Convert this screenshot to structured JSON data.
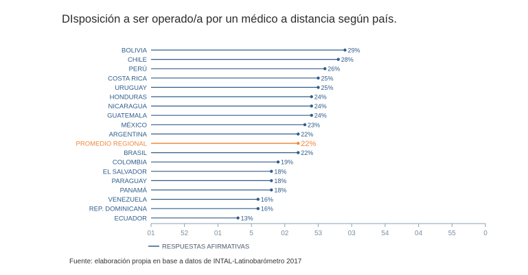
{
  "title": "DIsposición a ser operado/a por un médico a distancia según país.",
  "source": "Fuente: elaboración propia en base a datos de INTAL-Latinobarómetro 2017",
  "colors": {
    "series": "#2f5d8a",
    "highlight": "#f0883a",
    "axis": "#7a8fa3",
    "text": "#2f5d8a"
  },
  "chart_data": {
    "type": "bar",
    "title": "DIsposición a ser operado/a por un médico a distancia según país.",
    "xlim": [
      0,
      50
    ],
    "x_tick_labels": [
      "01",
      "52",
      "01",
      "5",
      "02",
      "53",
      "03",
      "54",
      "04",
      "55",
      "0"
    ],
    "legend": "bottom-left",
    "series": [
      {
        "name": "RESPUESTAS AFIRMATIVAS",
        "categories": [
          "BOLIVIA",
          "CHILE",
          "PERÚ",
          "COSTA RICA",
          "URUGUAY",
          "HONDURAS",
          "NICARAGUA",
          "GUATEMALA",
          "MÉXICO",
          "ARGENTINA",
          "PROMEDIO REGIONAL",
          "BRASIL",
          "COLOMBIA",
          "EL SALVADOR",
          "PARAGUAY",
          "PANAMÁ",
          "VENEZUELA",
          "REP. DOMINICANA",
          "ECUADOR"
        ],
        "values": [
          29,
          28,
          26,
          25,
          25,
          24,
          24,
          24,
          23,
          22,
          22,
          22,
          19,
          18,
          18,
          18,
          16,
          16,
          13
        ],
        "value_labels": [
          "29%",
          "28%",
          "26%",
          "25%",
          "25%",
          "24%",
          "24%",
          "24%",
          "23%",
          "22%",
          "22%",
          "22%",
          "19%",
          "18%",
          "18%",
          "18%",
          "16%",
          "16%",
          "13%"
        ],
        "highlight": "PROMEDIO REGIONAL"
      }
    ]
  }
}
